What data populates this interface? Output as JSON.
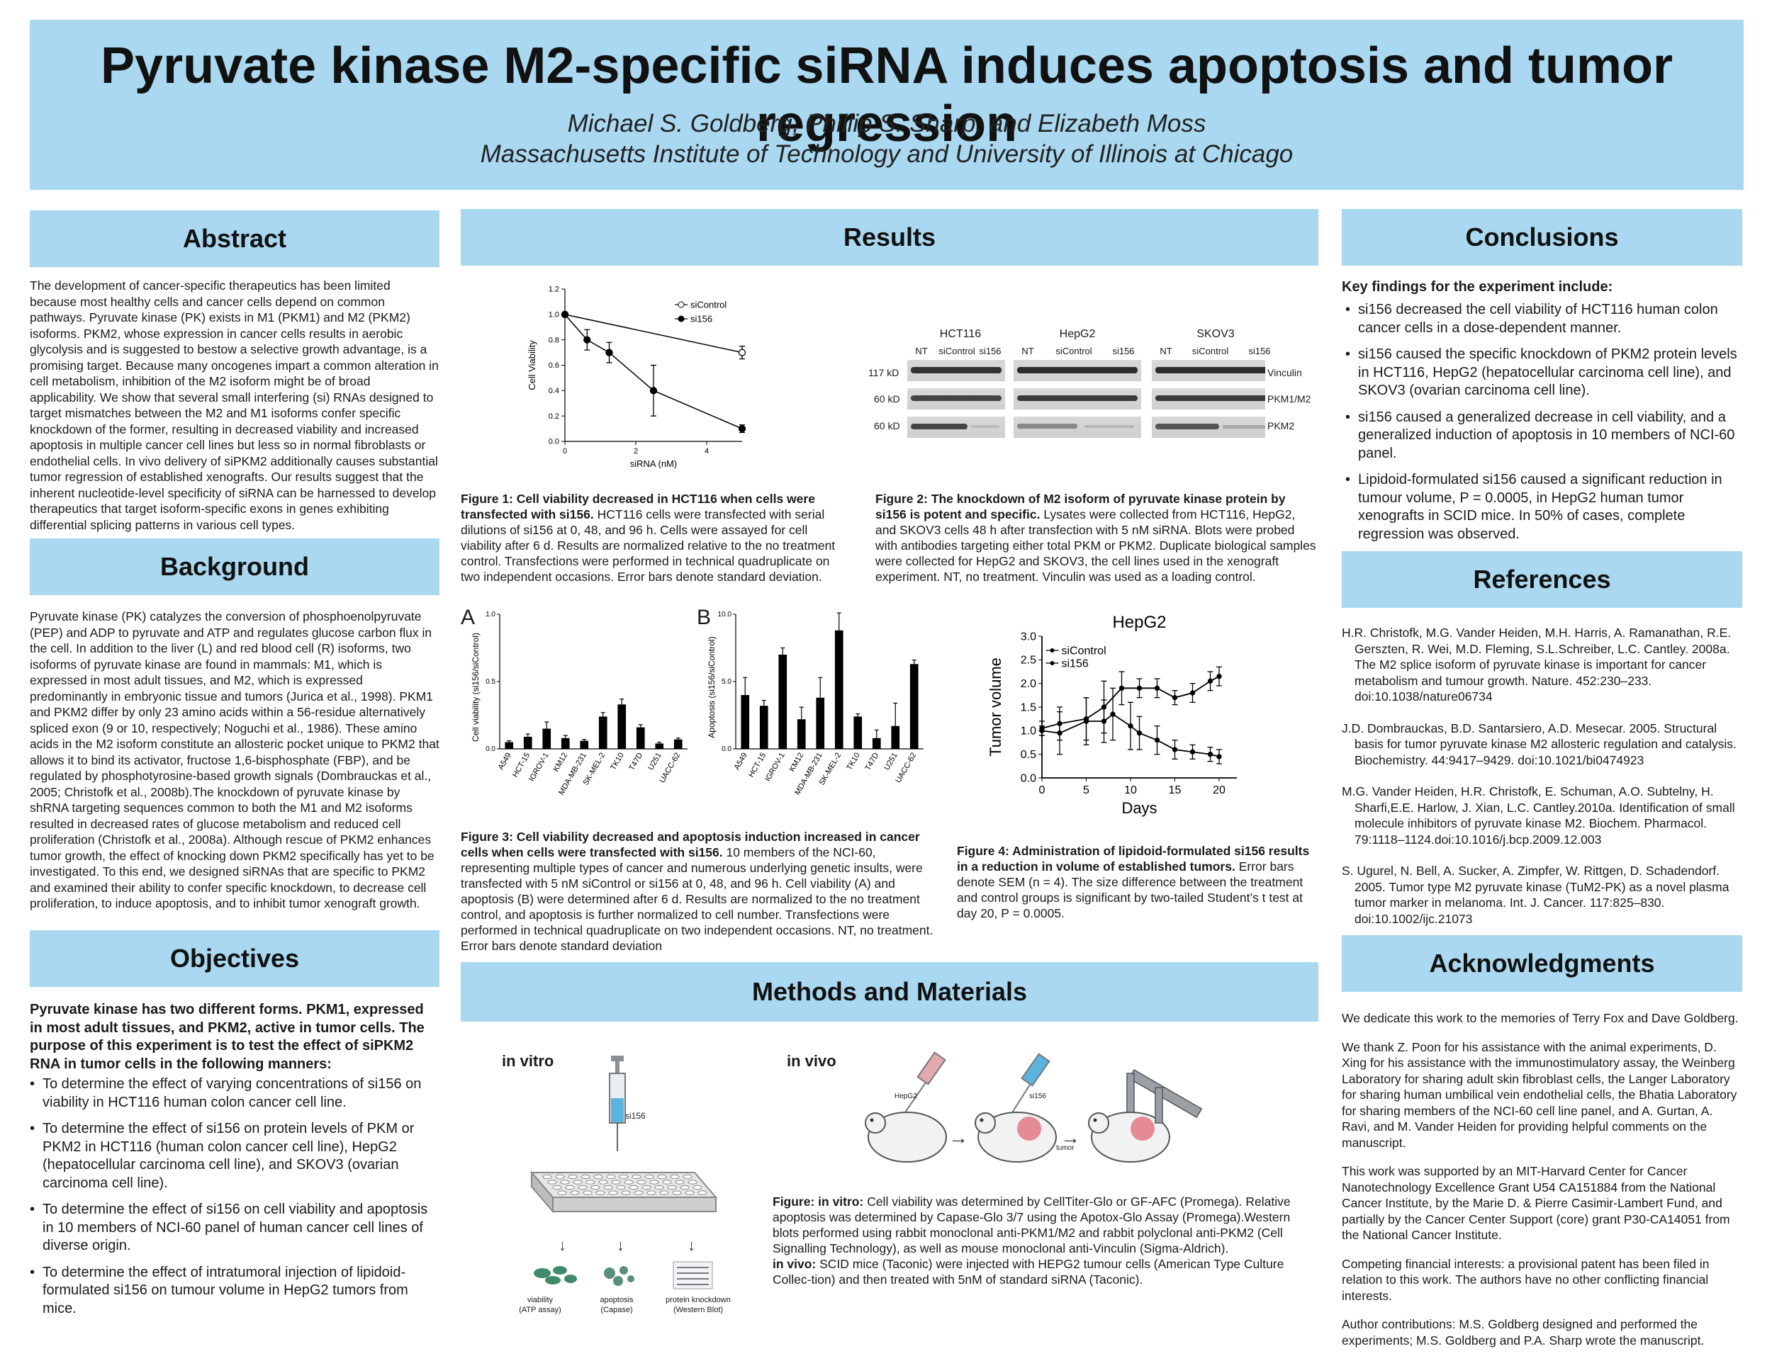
{
  "header": {
    "title": "Pyruvate kinase M2-specific siRNA induces apoptosis and tumor regression",
    "authors": "Michael S. Goldberg, Phillip S. Sharp, and Elizabeth Moss",
    "affiliation": "Massachusetts Institute of Technology and University of Illinois at Chicago"
  },
  "abstract": {
    "heading": "Abstract",
    "text": "The development of cancer-specific therapeutics has been limited because most healthy cells and cancer cells depend on common pathways. Pyruvate kinase (PK) exists in M1 (PKM1) and M2 (PKM2) isoforms. PKM2, whose expression in cancer cells results in aerobic glycolysis and is suggested to bestow a selective growth advantage, is a promising target. Because many oncogenes impart a common alteration in cell metabolism, inhibition of the M2 isoform might be of broad applicability. We show that several small interfering (si) RNAs designed to target mismatches between the M2 and M1 isoforms confer specific knockdown of the former, resulting in decreased viability and increased apoptosis in multiple cancer cell lines but less so in normal fibroblasts or endothelial cells. In vivo delivery of siPKM2 additionally causes substantial tumor regression of established xenografts. Our results suggest that the inherent nucleotide-level specificity of siRNA can be harnessed to develop therapeutics that target isoform-specific exons in genes exhibiting differential splicing patterns in various cell types."
  },
  "background": {
    "heading": "Background",
    "text": "Pyruvate kinase (PK) catalyzes the conversion of phosphoenolpyruvate (PEP) and ADP to pyruvate and ATP and regulates glucose carbon flux in the cell. In addition to the liver (L) and red blood cell (R) isoforms, two isoforms of pyruvate kinase are found in mammals: M1, which is expressed in most adult tissues, and M2, which is expressed predominantly in embryonic tissue and tumors (Jurica et al., 1998). PKM1 and PKM2 differ by only 23 amino acids within a 56-residue alternatively spliced exon (9 or 10, respectively; Noguchi et al., 1986). These amino acids in the M2 isoform constitute an allosteric pocket unique to PKM2 that allows it to bind its activator, fructose 1,6-bisphosphate (FBP), and be regulated by phosphotyrosine-based growth signals (Dombrauckas et al., 2005; Christofk et al., 2008b).The knockdown of pyruvate kinase by shRNA targeting sequences common to both the M1 and M2 isoforms resulted in decreased rates of glucose metabolism and reduced cell proliferation (Christofk et al., 2008a). Although rescue of PKM2 enhances tumor growth, the effect of knocking down PKM2 specifically has yet to be investigated. To this end, we designed siRNAs that are specific to PKM2 and examined their ability to confer specific knockdown, to decrease cell proliferation, to induce apoptosis, and to inhibit tumor xenograft growth."
  },
  "objectives": {
    "heading": "Objectives",
    "intro": "Pyruvate kinase has two different forms. PKM1, expressed in most adult tissues, and PKM2, active in tumor cells. The purpose of this experiment is to test the effect of siPKM2 RNA in tumor cells in the following manners:",
    "items": [
      "To determine the effect of varying concentrations of si156 on viability in HCT116 human colon cancer cell line.",
      "To determine the effect of si156 on protein levels of PKM or PKM2 in HCT116 (human colon cancer cell line), HepG2 (hepatocellular carcinoma cell line), and SKOV3 (ovarian carcinoma cell line).",
      "To determine the effect of si156 on cell viability and apoptosis in 10 members of NCI-60 panel of human cancer cell lines of diverse origin.",
      "To determine the effect of intratumoral injection of lipidoid-formulated si156 on tumour volume in HepG2 tumors from mice."
    ]
  },
  "results": {
    "heading": "Results",
    "fig1": {
      "caption_bold": "Figure 1: Cell viability decreased in HCT116 when cells were transfected with si156.",
      "caption": " HCT116 cells were transfected with serial dilutions of si156 at 0, 48, and 96 h. Cells were assayed for cell viability after 6 d. Results are normalized relative to the no treatment control. Transfections were performed in technical quadruplicate on two independent occasions. Error bars denote standard deviation."
    },
    "fig2": {
      "caption_bold": "Figure 2: The knockdown of M2 isoform of pyruvate kinase protein by si156 is potent and specific.",
      "caption": " Lysates were collected from HCT116, HepG2, and SKOV3 cells 48 h after transfection with 5 nM siRNA. Blots were probed with antibodies targeting either total PKM or PKM2. Duplicate biological samples were collected for HepG2 and SKOV3, the cell lines used in the xenograft experiment. NT, no treatment. Vinculin was used as a loading control.",
      "cell_lines": [
        "HCT116",
        "HepG2",
        "SKOV3"
      ],
      "lanes_hct": [
        "NT",
        "siControl",
        "si156"
      ],
      "lanes_other": [
        "NT",
        "siControl",
        "si156"
      ],
      "sizes": [
        "117 kD",
        "60 kD",
        "60 kD"
      ],
      "bands": [
        "Vinculin",
        "PKM1/M2",
        "PKM2"
      ]
    },
    "fig3": {
      "caption_bold": "Figure 3: Cell viability decreased and apoptosis induction increased in cancer cells when cells were transfected with si156.",
      "caption": " 10 members of the NCI-60, representing multiple types of cancer and numerous underlying genetic insults, were transfected with 5 nM siControl or si156 at 0, 48, and 96 h. Cell viability (A) and apoptosis (B) were determined after 6 d. Results are normalized to the no treatment control, and apoptosis is further normalized to cell number. Transfections were performed in technical quadruplicate on two independent occasions. NT, no treatment. Error bars denote standard deviation",
      "panel_a": "A",
      "panel_b": "B"
    },
    "fig4": {
      "caption_bold": "Figure 4: Administration of lipidoid-formulated si156 results in a reduction in volume of established tumors.",
      "caption": " Error bars denote SEM (n = 4). The size difference between the treatment and control groups is significant by two-tailed Student’s t test at day 20, P = 0.0005."
    }
  },
  "methods": {
    "heading": "Methods and Materials",
    "in_vitro": "in vitro",
    "in_vivo": "in vivo",
    "syringe_label": "si156",
    "vitro_labels": [
      {
        "l1": "viability",
        "l2": "(ATP assay)"
      },
      {
        "l1": "apoptosis",
        "l2": "(Capase)"
      },
      {
        "l1": "protein knockdown",
        "l2": "(Western Blot)"
      }
    ],
    "vivo_labels": {
      "hepg2": "HepG2",
      "si156": "si156",
      "tumor": "tumor"
    },
    "caption_vitro_bold": "Figure: in vitro:",
    "caption_vitro": " Cell viability was determined by CellTiter-Glo or GF-AFC (Promega). Relative apoptosis was determined by Capase-Glo 3/7 using the Apotox-Glo Assay  (Promega).Western blots performed using rabbit monoclonal anti-PKM1/M2 and rabbit polyclonal anti-PKM2 (Cell Signalling Technology), as well as mouse monoclonal anti-Vinculin (Sigma-Aldrich).",
    "caption_vivo_bold": "in vivo:",
    "caption_vivo": " SCID mice (Taconic) were injected with HEPG2 tumour cells (American Type Culture Collec-tion) and then treated with 5nM of standard siRNA (Taconic)."
  },
  "conclusions": {
    "heading": "Conclusions",
    "intro": "Key findings for the experiment include:",
    "items": [
      "si156 decreased the cell viability of HCT116 human colon cancer cells in a dose-dependent manner.",
      "si156 caused the specific knockdown of PKM2 protein levels in HCT116, HepG2 (hepatocellular carcinoma cell line), and SKOV3 (ovarian carcinoma cell line).",
      "si156 caused a generalized decrease in cell viability, and a generalized induction of apoptosis in 10 members of NCI-60 panel.",
      "Lipidoid-formulated si156 caused a significant reduction in tumour volume, P = 0.0005, in HepG2 human tumor xenografts in SCID mice. In 50% of cases, complete regression was observed."
    ]
  },
  "references": {
    "heading": "References",
    "items": [
      "H.R. Christofk, M.G. Vander Heiden, M.H. Harris, A. Ramanathan, R.E. Gerszten, R. Wei, M.D. Fleming, S.L.Schreiber, L.C. Cantley. 2008a. The M2 splice isoform of pyruvate kinase is important for cancer metabolism and tumour growth. Nature. 452:230–233. doi:10.1038/nature06734",
      "J.D. Dombrauckas, B.D. Santarsiero, A.D. Mesecar. 2005. Structural basis for tumor pyruvate kinase M2 allosteric regulation and catalysis. Biochemistry. 44:9417–9429. doi:10.1021/bi0474923",
      "M.G. Vander Heiden, H.R. Christofk, E. Schuman, A.O. Subtelny, H. Sharfi,E.E. Harlow, J. Xian, L.C. Cantley.2010a. Identification of small molecule inhibitors of pyruvate kinase M2. Biochem. Pharmacol. 79:1118–1124.doi:10.1016/j.bcp.2009.12.003",
      "S. Ugurel, N. Bell, A. Sucker, A. Zimpfer, W. Rittgen, D. Schadendorf. 2005. Tumor type M2 pyruvate kinase (TuM2-PK) as a novel plasma tumor marker in melanoma. Int. J. Cancer. 117:825–830. doi:10.1002/ijc.21073"
    ]
  },
  "acknowledgments": {
    "heading": "Acknowledgments",
    "items": [
      "We dedicate this work to the memories of Terry Fox and Dave Goldberg.",
      "We thank Z. Poon for his assistance with the animal experiments, D. Xing for his assistance with the immunostimulatory assay, the Weinberg Laboratory for sharing adult skin fibroblast cells, the Langer Laboratory for sharing human umbilical vein endothelial cells, the Bhatia Laboratory for sharing members of the NCI-60 cell line panel, and A. Gurtan, A. Ravi, and M. Vander Heiden for providing helpful comments on the manuscript.",
      "This work was supported by an MIT-Harvard Center for Cancer Nanotechnology Excellence Grant U54 CA151884 from the National Cancer Institute, by the Marie D. & Pierre Casimir-Lambert Fund, and partially by the Cancer Center Support (core) grant P30-CA14051 from the National Cancer Institute.",
      "Competing financial interests: a provisional patent has been filed in relation to this work. The authors have no other conflicting financial interests.",
      "Author contributions: M.S. Goldberg designed and performed the experiments; M.S. Goldberg and P.A. Sharp wrote the manuscript."
    ]
  },
  "chart_data": [
    {
      "type": "line",
      "id": "fig1",
      "xlabel": "siRNA (nM)",
      "ylabel": "Cell Viability",
      "xlim": [
        0,
        5
      ],
      "ylim": [
        0,
        1.2
      ],
      "xticks": [
        0,
        2,
        4
      ],
      "yticks": [
        0,
        0.2,
        0.4,
        0.6,
        0.8,
        1.0,
        1.2
      ],
      "series": [
        {
          "name": "siControl",
          "x": [
            0,
            5
          ],
          "y": [
            1.0,
            0.7
          ],
          "err": [
            0,
            0.05
          ],
          "marker": "open"
        },
        {
          "name": "si156",
          "x": [
            0,
            0.625,
            1.25,
            2.5,
            5
          ],
          "y": [
            1.0,
            0.8,
            0.7,
            0.4,
            0.1
          ],
          "err": [
            0,
            0.08,
            0.08,
            0.2,
            0.03
          ],
          "marker": "filled"
        }
      ]
    },
    {
      "type": "bar",
      "id": "fig3a",
      "ylabel": "Cell viability (si156/siControl)",
      "ylim": [
        0,
        1.0
      ],
      "yticks": [
        0,
        0.5,
        1.0
      ],
      "categories": [
        "A549",
        "HCT-15",
        "IGROV-1",
        "KM12",
        "MDA-MB-231",
        "SK-MEL-2",
        "TK10",
        "T47D",
        "U251",
        "UACC-62"
      ],
      "values": [
        0.05,
        0.09,
        0.15,
        0.08,
        0.06,
        0.24,
        0.33,
        0.16,
        0.04,
        0.07
      ],
      "errors": [
        0.01,
        0.02,
        0.05,
        0.02,
        0.01,
        0.03,
        0.04,
        0.02,
        0.01,
        0.01
      ]
    },
    {
      "type": "bar",
      "id": "fig3b",
      "ylabel": "Apoptosis (si156/siControl)",
      "ylim": [
        0,
        10.0
      ],
      "yticks": [
        0,
        5.0,
        10.0
      ],
      "categories": [
        "A549",
        "HCT-15",
        "IGROV-1",
        "KM12",
        "MDA-MB-231",
        "SK-MEL-2",
        "TK10",
        "T47D",
        "U251",
        "UACC-62"
      ],
      "values": [
        4.0,
        3.2,
        7.0,
        2.2,
        3.8,
        8.8,
        2.4,
        0.8,
        1.7,
        6.3
      ],
      "errors": [
        1.3,
        0.4,
        0.5,
        0.9,
        1.5,
        1.3,
        0.2,
        0.6,
        1.7,
        0.3
      ]
    },
    {
      "type": "line",
      "id": "fig4",
      "title": "HepG2",
      "xlabel": "Days",
      "ylabel": "Tumor volume",
      "xlim": [
        0,
        22
      ],
      "ylim": [
        0,
        3.0
      ],
      "xticks": [
        0,
        5,
        10,
        15,
        20
      ],
      "yticks": [
        0,
        0.5,
        1.0,
        1.5,
        2.0,
        2.5,
        3.0
      ],
      "series": [
        {
          "name": "siControl",
          "x": [
            0,
            2,
            5,
            7,
            9,
            11,
            13,
            15,
            17,
            19,
            20
          ],
          "y": [
            1.05,
            1.15,
            1.25,
            1.5,
            1.9,
            1.9,
            1.9,
            1.7,
            1.8,
            2.05,
            2.15
          ],
          "err": [
            0.15,
            0.35,
            0.45,
            0.55,
            0.35,
            0.2,
            0.2,
            0.15,
            0.2,
            0.2,
            0.2
          ]
        },
        {
          "name": "si156",
          "x": [
            0,
            2,
            5,
            7,
            8,
            10,
            11,
            13,
            15,
            17,
            19,
            20
          ],
          "y": [
            1.0,
            0.95,
            1.2,
            1.2,
            1.35,
            1.1,
            0.95,
            0.8,
            0.6,
            0.55,
            0.5,
            0.45
          ],
          "err": [
            0.1,
            0.45,
            0.5,
            0.45,
            0.55,
            0.5,
            0.35,
            0.3,
            0.2,
            0.15,
            0.15,
            0.15
          ]
        }
      ]
    }
  ]
}
